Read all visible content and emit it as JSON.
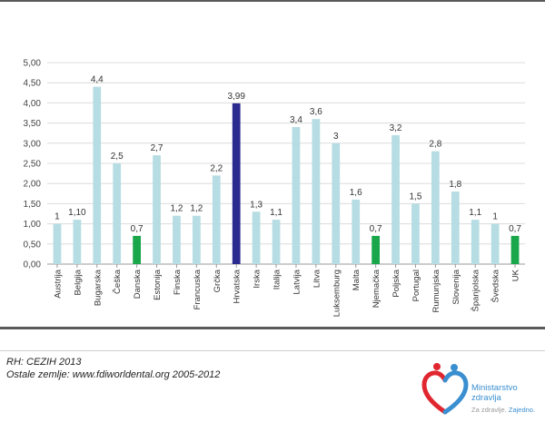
{
  "chart_data": {
    "type": "bar",
    "title": "",
    "xlabel": "",
    "ylabel": "",
    "categories": [
      "Austrija",
      "Belgija",
      "Bugarska",
      "Češka",
      "Danska",
      "Estonija",
      "Finska",
      "Francuska",
      "Grčka",
      "Hrvatska",
      "Irska",
      "Italija",
      "Latvija",
      "Litva",
      "Luksemburg",
      "Malta",
      "Njemačka",
      "Poljska",
      "Portugal",
      "Rumunjska",
      "Slovenija",
      "Španjolska",
      "Švedska",
      "UK"
    ],
    "values": [
      1,
      1.1,
      4.4,
      2.5,
      0.7,
      2.7,
      1.2,
      1.2,
      2.2,
      3.99,
      1.3,
      1.1,
      3.4,
      3.6,
      3,
      1.6,
      0.7,
      3.2,
      1.5,
      2.8,
      1.8,
      1.1,
      1,
      0.7
    ],
    "value_labels": [
      "1",
      "1,10",
      "4,4",
      "2,5",
      "0,7",
      "2,7",
      "1,2",
      "1,2",
      "2,2",
      "3,99",
      "1,3",
      "1,1",
      "3,4",
      "3,6",
      "3",
      "1,6",
      "0,7",
      "3,2",
      "1,5",
      "2,8",
      "1,8",
      "1,1",
      "1",
      "0,7"
    ],
    "bar_colors": [
      "#b6dde3",
      "#b6dde3",
      "#b6dde3",
      "#b6dde3",
      "#1aa64a",
      "#b6dde3",
      "#b6dde3",
      "#b6dde3",
      "#b6dde3",
      "#2a2a8f",
      "#b6dde3",
      "#b6dde3",
      "#b6dde3",
      "#b6dde3",
      "#b6dde3",
      "#b6dde3",
      "#1aa64a",
      "#b6dde3",
      "#b6dde3",
      "#b6dde3",
      "#b6dde3",
      "#b6dde3",
      "#b6dde3",
      "#1aa64a"
    ],
    "ylim": [
      0,
      5
    ],
    "yticks": [
      0,
      0.5,
      1,
      1.5,
      2,
      2.5,
      3,
      3.5,
      4,
      4.5,
      5
    ],
    "ytick_labels": [
      "0,00",
      "0,50",
      "1,00",
      "1,50",
      "2,00",
      "2,50",
      "3,00",
      "3,50",
      "4,00",
      "4,50",
      "5,00"
    ],
    "grid": true,
    "legend": "none"
  },
  "footer": {
    "source_line1": "RH: CEZIH 2013",
    "source_line2": "Ostale zemlje: www.fdiworldental.org 2005-2012"
  },
  "logo": {
    "name_line1": "Ministarstvo",
    "name_line2": "zdravlja",
    "tagline_start": "Za zdravlje.",
    "tagline_end": "Zajedno.",
    "colors": {
      "red": "#e0262f",
      "blue": "#3a8fd0"
    }
  }
}
